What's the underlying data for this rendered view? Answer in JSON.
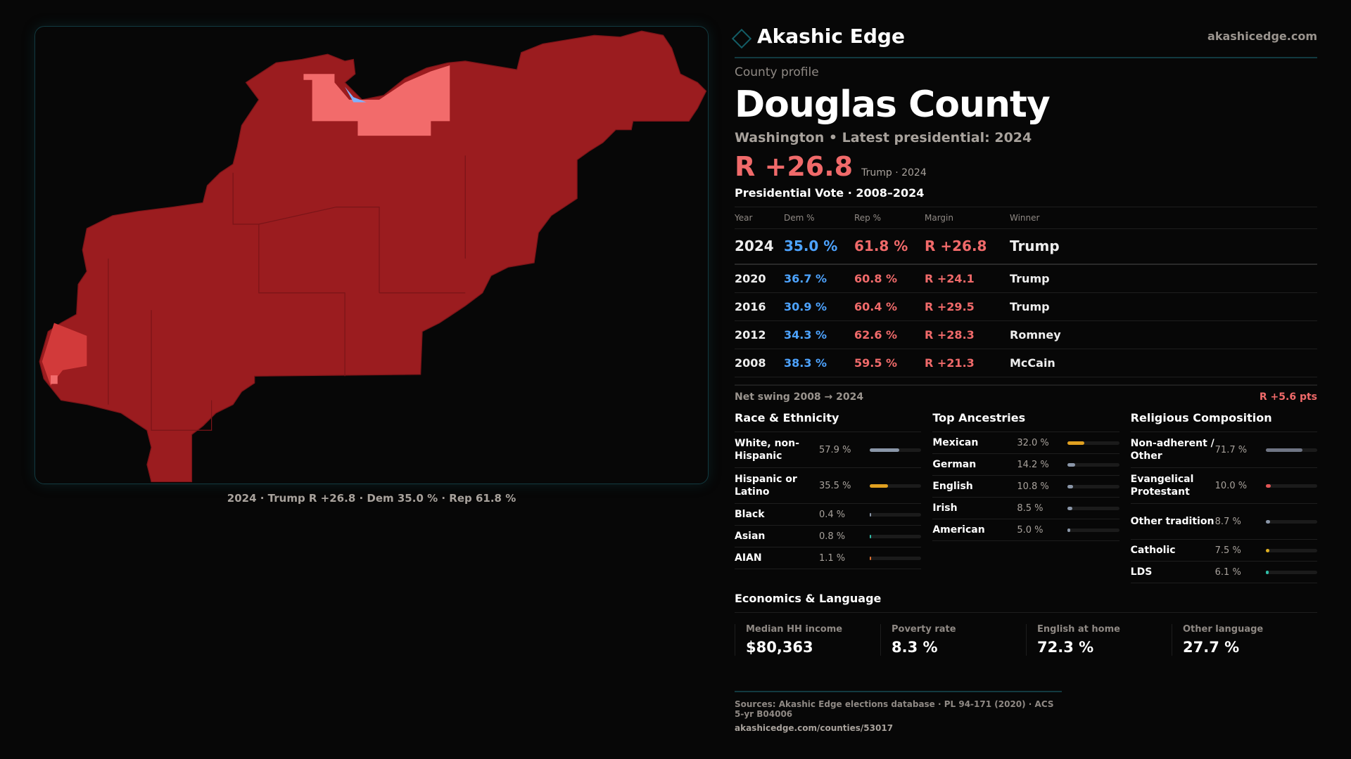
{
  "brand": {
    "name": "Akashic Edge",
    "site": "akashicedge.com"
  },
  "county": {
    "kicker": "County profile",
    "name": "Douglas County",
    "subtitle": "Washington • Latest presidential: 2024",
    "margin": "R +26.8",
    "margin_note": "Trump · 2024"
  },
  "map": {
    "caption": "2024 · Trump R +26.8 · Dem 35.0 % · Rep 61.8 %",
    "colors": {
      "strong_rep": "#9b1c1f",
      "lean_rep": "#f26b6b",
      "mid_rep": "#d23a3a",
      "dem": "#7fb2ff"
    }
  },
  "votes": {
    "title": "Presidential Vote · 2008–2024",
    "headers": [
      "Year",
      "Dem %",
      "Rep %",
      "Margin",
      "Winner"
    ],
    "rows": [
      {
        "year": "2024",
        "dem": "35.0 %",
        "rep": "61.8 %",
        "margin": "R +26.8",
        "winner": "Trump"
      },
      {
        "year": "2020",
        "dem": "36.7 %",
        "rep": "60.8 %",
        "margin": "R +24.1",
        "winner": "Trump"
      },
      {
        "year": "2016",
        "dem": "30.9 %",
        "rep": "60.4 %",
        "margin": "R +29.5",
        "winner": "Trump"
      },
      {
        "year": "2012",
        "dem": "34.3 %",
        "rep": "62.6 %",
        "margin": "R +28.3",
        "winner": "Romney"
      },
      {
        "year": "2008",
        "dem": "38.3 %",
        "rep": "59.5 %",
        "margin": "R +21.3",
        "winner": "McCain"
      }
    ],
    "swing_label": "Net swing 2008 → 2024",
    "swing_value": "R +5.6 pts"
  },
  "race": {
    "title": "Race & Ethnicity",
    "items": [
      {
        "label": "White, non-Hispanic",
        "value": "57.9 %",
        "pct": 57.9,
        "color": "#8a96a8"
      },
      {
        "label": "Hispanic or Latino",
        "value": "35.5 %",
        "pct": 35.5,
        "color": "#e0a020"
      },
      {
        "label": "Black",
        "value": "0.4 %",
        "pct": 0.4,
        "color": "#8a96a8"
      },
      {
        "label": "Asian",
        "value": "0.8 %",
        "pct": 0.8,
        "color": "#2fbfa8"
      },
      {
        "label": "AIAN",
        "value": "1.1 %",
        "pct": 1.1,
        "color": "#e07030"
      }
    ]
  },
  "ancestry": {
    "title": "Top Ancestries",
    "items": [
      {
        "label": "Mexican",
        "value": "32.0 %",
        "pct": 32.0,
        "color": "#e0a020"
      },
      {
        "label": "German",
        "value": "14.2 %",
        "pct": 14.2,
        "color": "#8a96a8"
      },
      {
        "label": "English",
        "value": "10.8 %",
        "pct": 10.8,
        "color": "#8a96a8"
      },
      {
        "label": "Irish",
        "value": "8.5 %",
        "pct": 8.5,
        "color": "#8a96a8"
      },
      {
        "label": "American",
        "value": "5.0 %",
        "pct": 5.0,
        "color": "#8a96a8"
      }
    ]
  },
  "religion": {
    "title": "Religious Composition",
    "items": [
      {
        "label": "Non-adherent / Other",
        "value": "71.7 %",
        "pct": 71.7,
        "color": "#6f7584"
      },
      {
        "label": "Evangelical Protestant",
        "value": "10.0 %",
        "pct": 10.0,
        "color": "#e05555"
      },
      {
        "label": "Other tradition",
        "value": "8.7 %",
        "pct": 8.7,
        "color": "#8a96a8"
      },
      {
        "label": "Catholic",
        "value": "7.5 %",
        "pct": 7.5,
        "color": "#e0b020"
      },
      {
        "label": "LDS",
        "value": "6.1 %",
        "pct": 6.1,
        "color": "#2fbfa8"
      }
    ]
  },
  "economics": {
    "title": "Economics & Language",
    "stats": [
      {
        "label": "Median HH income",
        "value": "$80,363"
      },
      {
        "label": "Poverty rate",
        "value": "8.3 %"
      },
      {
        "label": "English at home",
        "value": "72.3 %"
      },
      {
        "label": "Other language",
        "value": "27.7 %"
      }
    ]
  },
  "footer": {
    "sources": "Sources: Akashic Edge elections database · PL 94-171 (2020) · ACS 5-yr B04006",
    "url": "akashicedge.com/counties/53017"
  }
}
